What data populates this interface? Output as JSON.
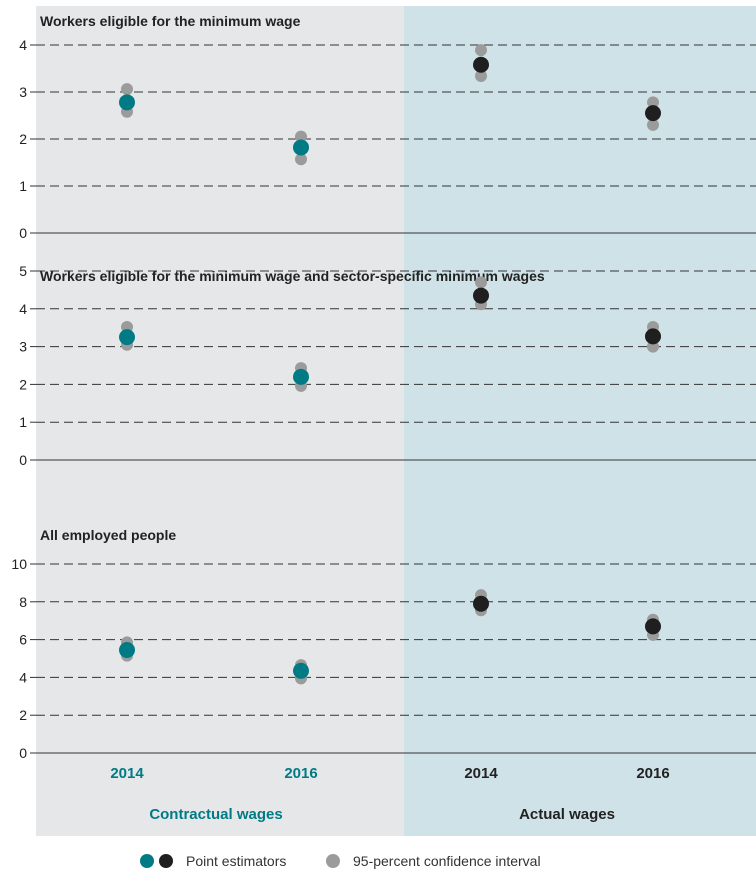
{
  "colors": {
    "contractual_bg": "#e6e7e8",
    "actual_bg": "#cfe2e7",
    "teal": "#007b85",
    "black": "#1f1f1f",
    "ci_grey": "#9b9b9b",
    "grid": "#333333"
  },
  "x_labels": [
    "2014",
    "2016",
    "2014",
    "2016"
  ],
  "groups": {
    "contractual": "Contractual wages",
    "actual": "Actual wages"
  },
  "legend": {
    "point_estimators": "Point estimators",
    "ci": "95-percent confidence interval"
  },
  "chart_data": [
    {
      "type": "scatter",
      "title": "Workers eligible for the minimum wage",
      "ylim": [
        0,
        4
      ],
      "yticks": [
        0,
        1,
        2,
        3,
        4
      ],
      "grid": true,
      "points": [
        {
          "group": "Contractual wages",
          "x": "2014",
          "value": 2.78,
          "ci": [
            2.58,
            3.06
          ]
        },
        {
          "group": "Contractual wages",
          "x": "2016",
          "value": 1.82,
          "ci": [
            1.57,
            2.05
          ]
        },
        {
          "group": "Actual wages",
          "x": "2014",
          "value": 3.58,
          "ci": [
            3.34,
            3.89
          ]
        },
        {
          "group": "Actual wages",
          "x": "2016",
          "value": 2.55,
          "ci": [
            2.3,
            2.78
          ]
        }
      ]
    },
    {
      "type": "scatter",
      "title": "Workers eligible for the minimum wage and sector-specific minimum wages",
      "ylim": [
        0,
        5
      ],
      "yticks": [
        0,
        1,
        2,
        3,
        4,
        5
      ],
      "grid": true,
      "points": [
        {
          "group": "Contractual wages",
          "x": "2014",
          "value": 3.25,
          "ci": [
            3.05,
            3.52
          ]
        },
        {
          "group": "Contractual wages",
          "x": "2016",
          "value": 2.2,
          "ci": [
            1.96,
            2.43
          ]
        },
        {
          "group": "Actual wages",
          "x": "2014",
          "value": 4.35,
          "ci": [
            4.12,
            4.7
          ]
        },
        {
          "group": "Actual wages",
          "x": "2016",
          "value": 3.27,
          "ci": [
            3.0,
            3.52
          ]
        }
      ]
    },
    {
      "type": "scatter",
      "title": "All employed people",
      "ylim": [
        0,
        10
      ],
      "yticks": [
        0,
        2,
        4,
        6,
        8,
        10
      ],
      "grid": true,
      "points": [
        {
          "group": "Contractual wages",
          "x": "2014",
          "value": 5.45,
          "ci": [
            5.15,
            5.85
          ]
        },
        {
          "group": "Contractual wages",
          "x": "2016",
          "value": 4.35,
          "ci": [
            3.95,
            4.65
          ]
        },
        {
          "group": "Actual wages",
          "x": "2014",
          "value": 7.9,
          "ci": [
            7.55,
            8.35
          ]
        },
        {
          "group": "Actual wages",
          "x": "2016",
          "value": 6.7,
          "ci": [
            6.25,
            7.05
          ]
        }
      ]
    }
  ]
}
